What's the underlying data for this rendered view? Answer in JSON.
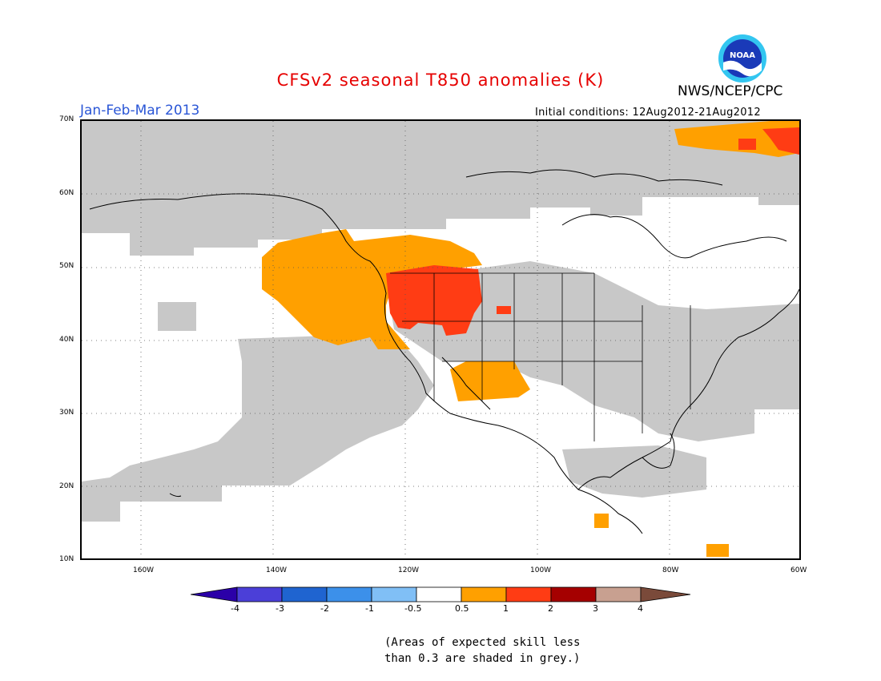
{
  "header": {
    "title": "CFSv2 seasonal T850 anomalies (K)",
    "org": "NWS/NCEP/CPC",
    "season": "Jan-Feb-Mar 2013",
    "initial_conditions": "Initial conditions: 12Aug2012-21Aug2012",
    "logo_text": "NOAA"
  },
  "map": {
    "lat_labels": [
      "70N",
      "60N",
      "50N",
      "40N",
      "30N",
      "20N",
      "10N"
    ],
    "lon_labels": [
      "160W",
      "140W",
      "120W",
      "100W",
      "80W",
      "60W"
    ]
  },
  "colorbar": {
    "labels": [
      "-4",
      "-3",
      "-2",
      "-1",
      "-0.5",
      "0.5",
      "1",
      "2",
      "3",
      "4"
    ],
    "colors": [
      "#2b00a8",
      "#4b3fd8",
      "#1f64d0",
      "#3c90ea",
      "#80bff6",
      "#ffffff",
      "#ffa000",
      "#ff3c14",
      "#a50000",
      "#c8a090",
      "#7a4a3a"
    ]
  },
  "note": {
    "line1": "(Areas of expected skill less",
    "line2": "than 0.3 are shaded in grey.)"
  },
  "legend_colors": {
    "grey": "#c8c8c8",
    "orange": "#ffa000",
    "red": "#ff3c14"
  }
}
